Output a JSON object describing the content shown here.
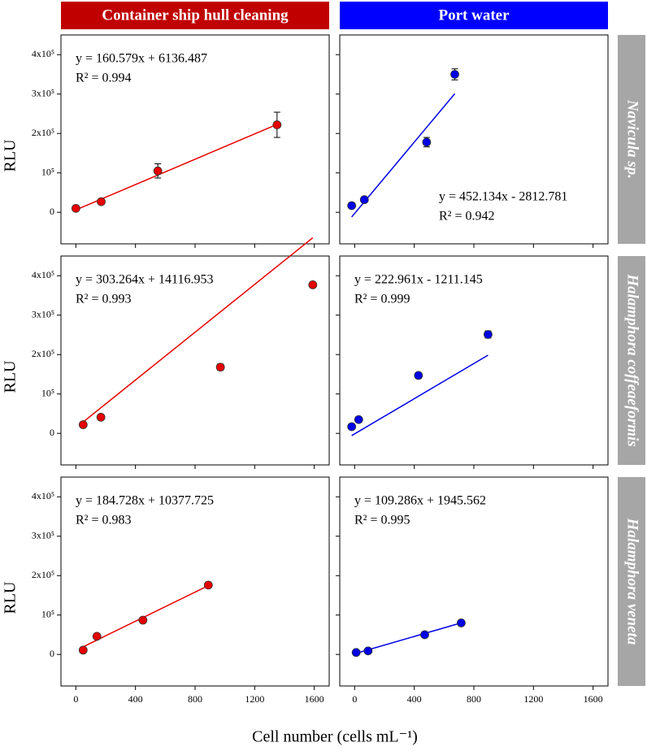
{
  "figure": {
    "columns": [
      "Container ship hull cleaning",
      "Port water"
    ],
    "column_colors": [
      "#c00000",
      "#0000ff"
    ],
    "rows": [
      "Navicula sp.",
      "Halamphora coffeaeformis",
      "Halamphora veneta"
    ],
    "row_color": "#a6a6a6",
    "xlabel": "Cell number (cells mL⁻¹)"
  },
  "chart_data": [
    {
      "type": "scatter",
      "ylabel": "RLU",
      "color": "#e60000",
      "x": [
        0,
        170,
        550,
        1350
      ],
      "values": [
        10000,
        27000,
        105000,
        222000
      ],
      "errors": [
        null,
        null,
        18000,
        32000
      ],
      "equation": "y = 160.579x + 6136.487",
      "r_squared": "R² = 0.994",
      "annotation_corner": "upper-left",
      "fit": {
        "slope": 160.579,
        "intercept": 6136.487
      },
      "xlim": [
        -100,
        1700
      ],
      "ylim": [
        -80000,
        450000
      ],
      "xticks": [
        0,
        400,
        800,
        1200,
        1600
      ],
      "yticks": [
        0,
        {
          "value": 100000,
          "label": "10⁵"
        },
        {
          "value": 200000,
          "label": "2x10⁵"
        },
        {
          "value": 300000,
          "label": "3x10⁵"
        },
        {
          "value": 400000,
          "label": "4x10⁵"
        }
      ],
      "show_xtick_labels": false,
      "show_ytick_labels": true
    },
    {
      "type": "scatter",
      "color": "#0000e6",
      "x": [
        -20,
        65,
        483,
        672
      ],
      "values": [
        17000,
        32000,
        178000,
        350000
      ],
      "errors": [
        null,
        null,
        12000,
        14000
      ],
      "equation": "y = 452.134x - 2812.781",
      "r_squared": "R² = 0.942",
      "annotation_corner": "lower-right",
      "fit": {
        "slope": 452.134,
        "intercept": -2812.781
      },
      "xlim": [
        -100,
        1700
      ],
      "ylim": [
        -80000,
        450000
      ],
      "xticks": [
        0,
        400,
        800,
        1200,
        1600
      ],
      "yticks": [
        0,
        100000,
        200000,
        300000,
        400000
      ],
      "show_xtick_labels": false,
      "show_ytick_labels": false
    },
    {
      "type": "scatter",
      "ylabel": "RLU",
      "color": "#e60000",
      "x": [
        49,
        168,
        970,
        1590
      ],
      "values": [
        22000,
        41000,
        168000,
        377000
      ],
      "errors": [
        null,
        null,
        8000,
        7000
      ],
      "equation": "y = 303.264x + 14116.953",
      "r_squared": "R² = 0.993",
      "annotation_corner": "upper-left",
      "fit": {
        "slope": 303.264,
        "intercept": 14116.953
      },
      "xlim": [
        -100,
        1700
      ],
      "ylim": [
        -80000,
        450000
      ],
      "xticks": [
        0,
        400,
        800,
        1200,
        1600
      ],
      "yticks": [
        0,
        {
          "value": 100000,
          "label": "10⁵"
        },
        {
          "value": 200000,
          "label": "2x10⁵"
        },
        {
          "value": 300000,
          "label": "3x10⁵"
        },
        {
          "value": 400000,
          "label": "4x10⁵"
        }
      ],
      "show_xtick_labels": false,
      "show_ytick_labels": true
    },
    {
      "type": "scatter",
      "color": "#0000e6",
      "x": [
        -20,
        27,
        428,
        895
      ],
      "values": [
        17000,
        35000,
        147000,
        251000
      ],
      "errors": [
        null,
        null,
        7000,
        9000
      ],
      "equation": "y = 222.961x - 1211.145",
      "r_squared": "R² = 0.999",
      "annotation_corner": "upper-left",
      "fit": {
        "slope": 222.961,
        "intercept": -1211.145
      },
      "xlim": [
        -100,
        1700
      ],
      "ylim": [
        -80000,
        450000
      ],
      "xticks": [
        0,
        400,
        800,
        1200,
        1600
      ],
      "yticks": [
        0,
        100000,
        200000,
        300000,
        400000
      ],
      "show_xtick_labels": false,
      "show_ytick_labels": false
    },
    {
      "type": "scatter",
      "ylabel": "RLU",
      "color": "#e60000",
      "x": [
        49,
        141,
        450,
        889
      ],
      "values": [
        11000,
        46000,
        87000,
        176000
      ],
      "errors": [
        null,
        null,
        null,
        6000
      ],
      "equation": "y = 184.728x + 10377.725",
      "r_squared": "R² = 0.983",
      "annotation_corner": "upper-left",
      "fit": {
        "slope": 184.728,
        "intercept": 10377.725
      },
      "xlim": [
        -100,
        1700
      ],
      "ylim": [
        -80000,
        450000
      ],
      "xticks": [
        0,
        400,
        800,
        1200,
        1600
      ],
      "yticks": [
        0,
        {
          "value": 100000,
          "label": "10⁵"
        },
        {
          "value": 200000,
          "label": "2x10⁵"
        },
        {
          "value": 300000,
          "label": "3x10⁵"
        },
        {
          "value": 400000,
          "label": "4x10⁵"
        }
      ],
      "show_xtick_labels": true,
      "show_ytick_labels": true
    },
    {
      "type": "scatter",
      "color": "#0000e6",
      "x": [
        10,
        90,
        470,
        715
      ],
      "values": [
        5000,
        9000,
        50000,
        80000
      ],
      "errors": [
        null,
        null,
        null,
        null
      ],
      "equation": "y = 109.286x + 1945.562",
      "r_squared": "R² = 0.995",
      "annotation_corner": "upper-left",
      "fit": {
        "slope": 109.286,
        "intercept": 1945.562
      },
      "xlim": [
        -100,
        1700
      ],
      "ylim": [
        -80000,
        450000
      ],
      "xticks": [
        0,
        400,
        800,
        1200,
        1600
      ],
      "yticks": [
        0,
        100000,
        200000,
        300000,
        400000
      ],
      "show_xtick_labels": true,
      "show_ytick_labels": false
    }
  ]
}
